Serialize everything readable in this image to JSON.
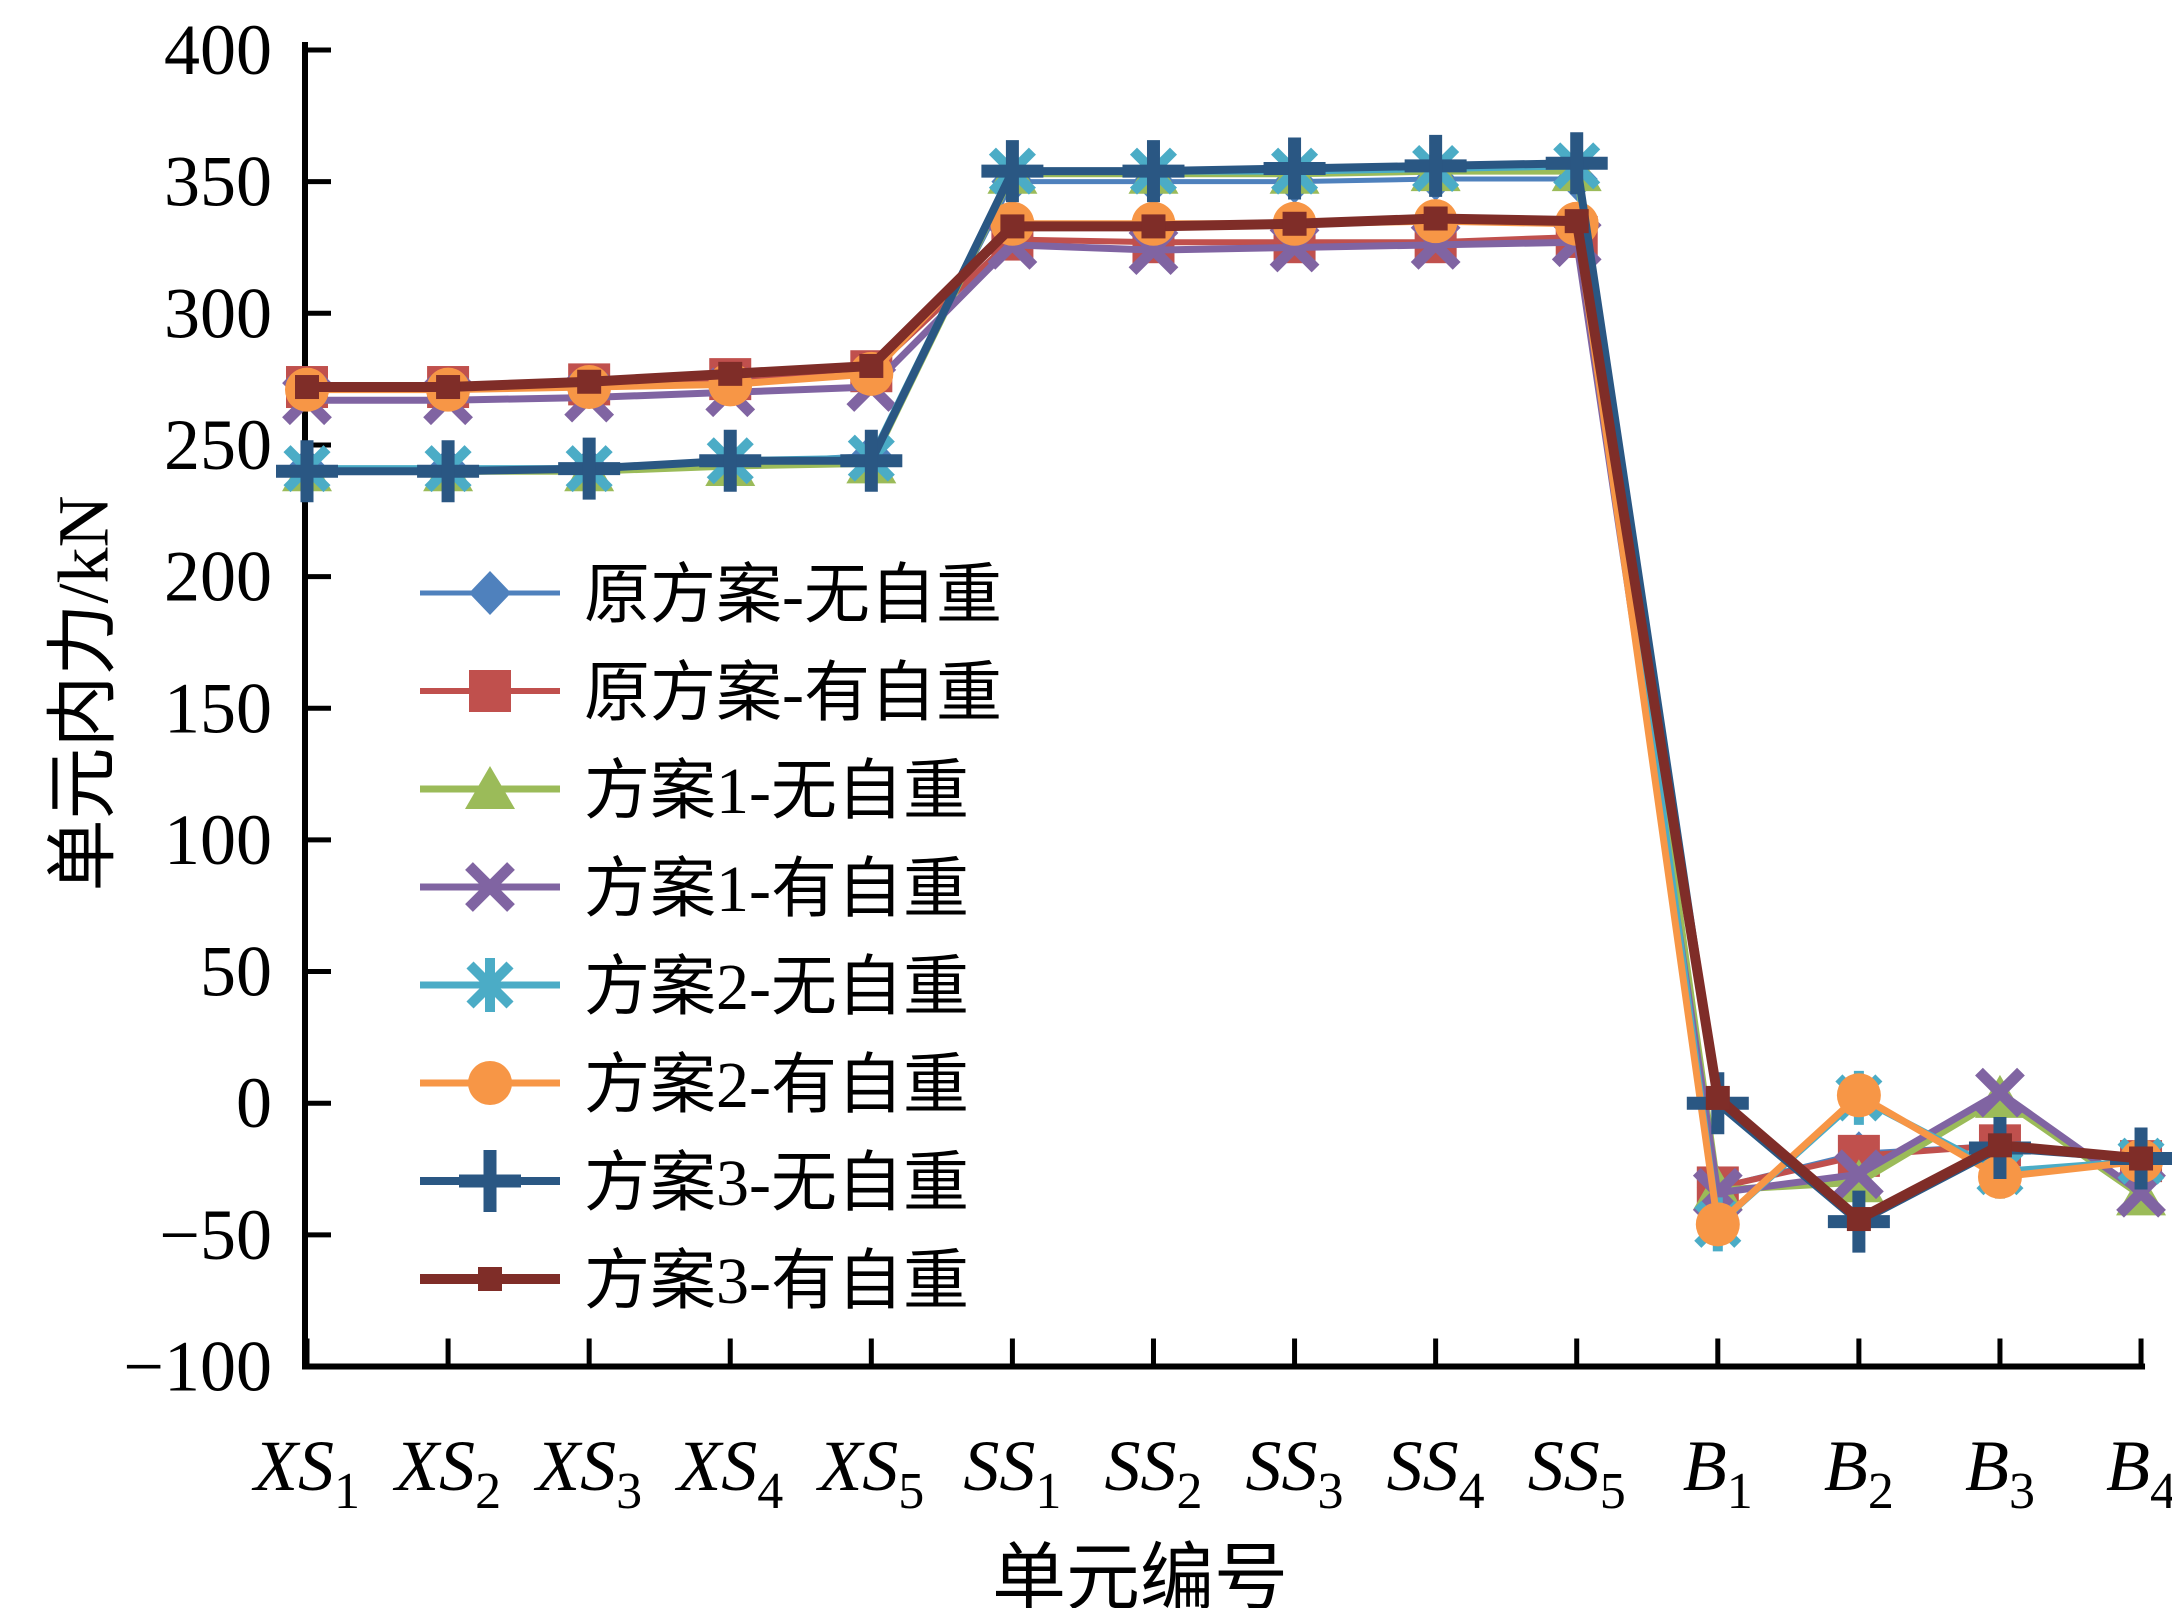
{
  "chart_data": {
    "type": "line",
    "title": "",
    "xlabel": "单元编号",
    "ylabel": "单元内力/kN",
    "ylim": [
      -100,
      400
    ],
    "ytick_step": 50,
    "yticks": [
      400,
      350,
      300,
      250,
      200,
      150,
      100,
      50,
      0,
      -50,
      -100
    ],
    "grid": false,
    "legend_position": "inside-left",
    "categories": [
      {
        "base": "XS",
        "sub": "1"
      },
      {
        "base": "XS",
        "sub": "2"
      },
      {
        "base": "XS",
        "sub": "3"
      },
      {
        "base": "XS",
        "sub": "4"
      },
      {
        "base": "XS",
        "sub": "5"
      },
      {
        "base": "SS",
        "sub": "1"
      },
      {
        "base": "SS",
        "sub": "2"
      },
      {
        "base": "SS",
        "sub": "3"
      },
      {
        "base": "SS",
        "sub": "4"
      },
      {
        "base": "SS",
        "sub": "5"
      },
      {
        "base": "B",
        "sub": "1"
      },
      {
        "base": "B",
        "sub": "2"
      },
      {
        "base": "B",
        "sub": "3"
      },
      {
        "base": "B",
        "sub": "4"
      }
    ],
    "series": [
      {
        "name": "原方案-无自重",
        "color": "#4F81BD",
        "marker": "diamond",
        "line_width": 5,
        "values": [
          241,
          241,
          241,
          243,
          246,
          350,
          350,
          350,
          351,
          351,
          -32,
          -19,
          -16,
          -22
        ]
      },
      {
        "name": "原方案-有自重",
        "color": "#C0504D",
        "marker": "square",
        "line_width": 6,
        "values": [
          272,
          272,
          273,
          275,
          278,
          328,
          327,
          327,
          327,
          329,
          -32,
          -20,
          -16,
          -22
        ]
      },
      {
        "name": "方案1-无自重",
        "color": "#9BBB59",
        "marker": "triangle",
        "line_width": 7,
        "values": [
          240,
          240,
          240,
          242,
          243,
          353,
          353,
          353,
          354,
          354,
          -33,
          -30,
          2,
          -35
        ]
      },
      {
        "name": "方案1-有自重",
        "color": "#8064A2",
        "marker": "x",
        "line_width": 7,
        "values": [
          267,
          267,
          268,
          270,
          272,
          326,
          324,
          325,
          326,
          327,
          -34,
          -27,
          4,
          -34
        ]
      },
      {
        "name": "方案2-无自重",
        "color": "#4BACC6",
        "marker": "asterisk",
        "line_width": 7,
        "values": [
          241,
          241,
          241,
          244,
          245,
          354,
          354,
          354,
          355,
          356,
          -46,
          2,
          -26,
          -22
        ]
      },
      {
        "name": "方案2-有自重",
        "color": "#F79646",
        "marker": "circle",
        "line_width": 7,
        "values": [
          271,
          271,
          272,
          273,
          277,
          334,
          334,
          334,
          335,
          334,
          -46,
          3,
          -28,
          -22
        ]
      },
      {
        "name": "方案3-无自重",
        "color": "#2A5783",
        "marker": "plus",
        "line_width": 8,
        "values": [
          240,
          240,
          241,
          244,
          244,
          354,
          354,
          355,
          356,
          357,
          0,
          -45,
          -17,
          -21
        ]
      },
      {
        "name": "方案3-有自重",
        "color": "#7F2D28",
        "marker": "square-small",
        "line_width": 10,
        "values": [
          272,
          272,
          274,
          277,
          280,
          333,
          333,
          334,
          336,
          335,
          2,
          -44,
          -16,
          -21
        ]
      }
    ]
  }
}
